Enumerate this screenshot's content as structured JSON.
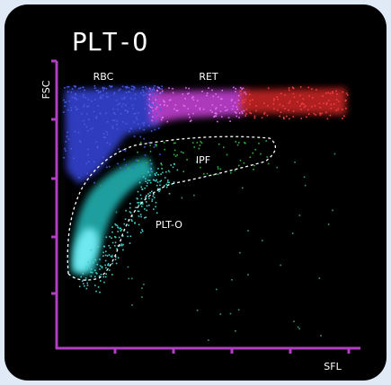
{
  "title": "PLT-O",
  "y_axis_label": "FSC",
  "x_axis_label": "SFL",
  "regions": [
    "RBC",
    "RET",
    "IPF",
    "PLT-O"
  ]
}
